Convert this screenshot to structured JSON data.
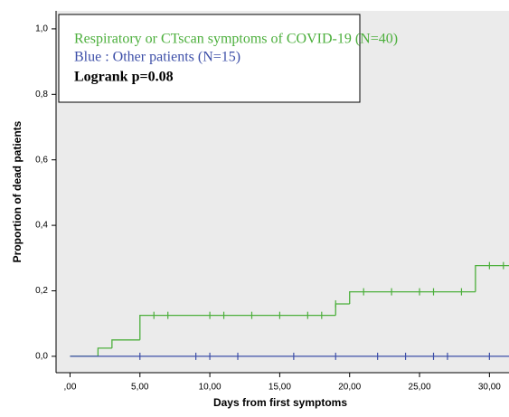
{
  "chart_data": {
    "type": "km-step",
    "ylabel": "Proportion of dead patients",
    "xlabel": "Days from first symptoms",
    "annotation": "Logrank p=0.08",
    "xlim": [
      -1,
      31.4
    ],
    "ylim": [
      -0.05,
      1.055
    ],
    "xticks": [
      {
        "value": 0,
        "label": ",00"
      },
      {
        "value": 5,
        "label": "5,00"
      },
      {
        "value": 10,
        "label": "10,00"
      },
      {
        "value": 15,
        "label": "15,00"
      },
      {
        "value": 20,
        "label": "20,00"
      },
      {
        "value": 25,
        "label": "25,00"
      },
      {
        "value": 30,
        "label": "30,00"
      }
    ],
    "yticks": [
      {
        "value": 0,
        "label": "0,0"
      },
      {
        "value": 0.2,
        "label": "0,2"
      },
      {
        "value": 0.4,
        "label": "0,4"
      },
      {
        "value": 0.6,
        "label": "0,6"
      },
      {
        "value": 0.8,
        "label": "0,8"
      },
      {
        "value": 1,
        "label": "1,0"
      }
    ],
    "series": [
      {
        "name": "Respiratory or CTscan symptoms of COVID-19 (N=40)",
        "color": "#4caf3c",
        "x": [
          0,
          2,
          3,
          5,
          19,
          20,
          29
        ],
        "values": [
          0,
          0.025,
          0.05,
          0.125,
          0.16,
          0.197,
          0.277
        ],
        "censored_x": [
          6,
          7,
          10,
          11,
          13,
          15,
          17,
          18,
          19,
          21,
          23,
          25,
          26,
          28,
          30,
          31
        ],
        "censored_y": [
          0.125,
          0.125,
          0.125,
          0.125,
          0.125,
          0.125,
          0.125,
          0.125,
          0.16,
          0.197,
          0.197,
          0.197,
          0.197,
          0.197,
          0.277,
          0.277
        ]
      },
      {
        "name": "Blue : Other patients (N=15)",
        "color": "#3d4fa8",
        "x": [
          0
        ],
        "values": [
          0
        ],
        "censored_x": [
          5,
          9,
          10,
          12,
          16,
          19,
          22,
          24,
          26,
          27,
          30
        ],
        "censored_y": [
          0,
          0,
          0,
          0,
          0,
          0,
          0,
          0,
          0,
          0,
          0
        ]
      }
    ]
  }
}
